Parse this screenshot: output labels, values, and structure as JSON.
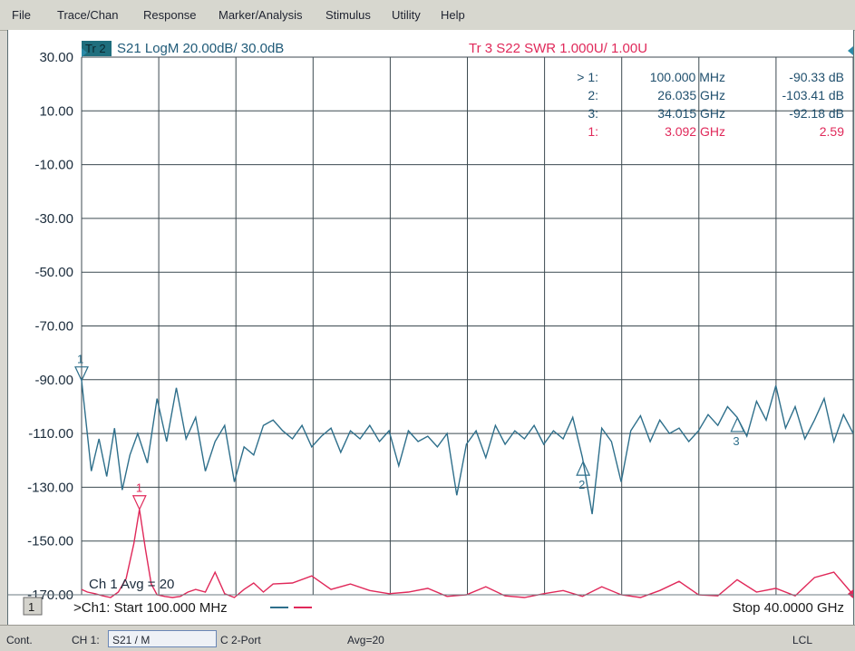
{
  "menu": [
    "File",
    "Trace/Chan",
    "Response",
    "Marker/Analysis",
    "Stimulus",
    "Utility",
    "Help"
  ],
  "trace2": {
    "id": "Tr 2",
    "label": "S21 LogM 20.00dB/  30.0dB",
    "color": "#1f5a78"
  },
  "trace3": {
    "label": "Tr 3   S22 SWR 1.000U/  1.00U",
    "color": "#e0295a"
  },
  "markers": [
    {
      "num": "> 1:",
      "freq": "100.000 MHz",
      "value": "-90.33 dB",
      "color": "#1f4f6d"
    },
    {
      "num": "2:",
      "freq": "26.035 GHz",
      "value": "-103.41 dB",
      "color": "#1f4f6d"
    },
    {
      "num": "3:",
      "freq": "34.015 GHz",
      "value": "-92.18 dB",
      "color": "#1f4f6d"
    },
    {
      "num": "1:",
      "freq": "3.092 GHz",
      "value": "2.59",
      "color": "#e0295a"
    }
  ],
  "y_axis_labels": [
    "30.00",
    "10.00",
    "-10.00",
    "-30.00",
    "-50.00",
    "-70.00",
    "-90.00",
    "-110.00",
    "-130.00",
    "-150.00",
    "-170.00"
  ],
  "avg_text": "Ch 1 Avg =   20",
  "channel_number": "1",
  "start_text": ">Ch1: Start  100.000 MHz",
  "stop_text": "Stop  40.0000 GHz",
  "marker_tags": {
    "s21_1": "1",
    "s21_2": "2",
    "s21_3": "3",
    "swr_1": "1"
  },
  "status": {
    "mode": "Cont.",
    "channel": "CH 1:",
    "param": "S21 / M",
    "cal": "C  2-Port",
    "avg": "Avg=20",
    "lcl": "LCL"
  },
  "chart_data": {
    "type": "line",
    "x_start_ghz": 0.1,
    "x_stop_ghz": 40.0,
    "ylim": [
      -170,
      30
    ],
    "y_step": 20,
    "x_divisions": 10,
    "grid": true,
    "series": [
      {
        "name": "Tr 2 S21 LogM",
        "color": "#2e6f8b",
        "x_ghz": [
          0.1,
          0.6,
          1.0,
          1.4,
          1.8,
          2.2,
          2.6,
          3.0,
          3.5,
          4.0,
          4.5,
          5.0,
          5.5,
          6.0,
          6.5,
          7.0,
          7.5,
          8.0,
          8.5,
          9.0,
          9.5,
          10.0,
          10.5,
          11.0,
          11.5,
          12.0,
          12.5,
          13.0,
          13.5,
          14.0,
          14.5,
          15.0,
          15.5,
          16.0,
          16.5,
          17.0,
          17.5,
          18.0,
          18.5,
          19.0,
          19.5,
          20.0,
          20.5,
          21.0,
          21.5,
          22.0,
          22.5,
          23.0,
          23.5,
          24.0,
          24.5,
          25.0,
          25.5,
          26.0,
          26.5,
          27.0,
          27.5,
          28.0,
          28.5,
          29.0,
          29.5,
          30.0,
          30.5,
          31.0,
          31.5,
          32.0,
          32.5,
          33.0,
          33.5,
          34.0,
          34.5,
          35.0,
          35.5,
          36.0,
          36.5,
          37.0,
          37.5,
          38.0,
          38.5,
          39.0,
          39.5,
          40.0
        ],
        "values_db": [
          -90.3,
          -124,
          -112,
          -126,
          -108,
          -131,
          -118,
          -110,
          -121,
          -97,
          -113,
          -93,
          -112,
          -104,
          -124,
          -113,
          -107,
          -128,
          -115,
          -118,
          -107,
          -105,
          -109,
          -112,
          -107,
          -115,
          -111,
          -108,
          -117,
          -109,
          -112,
          -107,
          -113,
          -109,
          -122,
          -109,
          -113,
          -111,
          -115,
          -110,
          -133,
          -114,
          -109,
          -119,
          -107,
          -114,
          -109,
          -112,
          -107,
          -114,
          -109,
          -112,
          -104,
          -119,
          -140,
          -108,
          -113,
          -128,
          -109,
          -103.4,
          -113,
          -105,
          -110,
          -108,
          -113,
          -109,
          -103,
          -107,
          -100,
          -104,
          -111,
          -98,
          -105,
          -92.2,
          -108,
          -100,
          -112,
          -105,
          -97,
          -113,
          -103,
          -110
        ],
        "marker_at_ghz": [
          0.1,
          26.035,
          34.015
        ]
      },
      {
        "name": "Tr 3 S22 SWR",
        "color": "#e0295a",
        "scale_units_per_div": 1.0,
        "reference_value": 1.0,
        "x_ghz": [
          0.1,
          0.4,
          0.8,
          1.2,
          1.6,
          2.0,
          2.4,
          2.8,
          3.092,
          3.4,
          3.7,
          4.0,
          4.4,
          4.8,
          5.2,
          5.6,
          6.0,
          6.5,
          7.0,
          7.5,
          8.0,
          8.5,
          9.0,
          9.5,
          10.0,
          11.0,
          12.0,
          13.0,
          14.0,
          15.0,
          16.0,
          17.0,
          18.0,
          19.0,
          20.0,
          21.0,
          22.0,
          23.0,
          24.0,
          25.0,
          26.0,
          27.0,
          28.0,
          29.0,
          30.0,
          31.0,
          32.0,
          33.0,
          34.0,
          35.0,
          36.0,
          37.0,
          38.0,
          39.0,
          40.0
        ],
        "values_swr": [
          1.1,
          1.05,
          1.02,
          0.98,
          0.95,
          1.05,
          1.3,
          1.95,
          2.59,
          1.85,
          1.2,
          1.0,
          0.97,
          0.95,
          0.97,
          1.05,
          1.1,
          1.05,
          1.42,
          1.02,
          0.95,
          1.1,
          1.22,
          1.05,
          1.2,
          1.22,
          1.35,
          1.1,
          1.2,
          1.08,
          1.02,
          1.05,
          1.12,
          0.97,
          1.0,
          1.15,
          0.98,
          0.95,
          1.02,
          1.08,
          0.97,
          1.15,
          1.0,
          0.95,
          1.08,
          1.25,
          1.0,
          0.98,
          1.28,
          1.05,
          1.12,
          0.98,
          1.32,
          1.42,
          1.0
        ],
        "marker_at_ghz": [
          3.092
        ]
      }
    ]
  }
}
